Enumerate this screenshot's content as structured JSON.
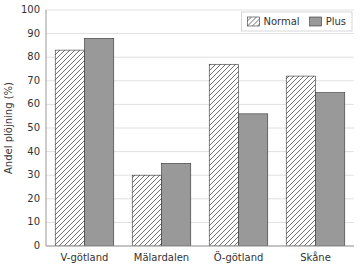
{
  "chart_data": {
    "type": "bar",
    "categories": [
      "V-götland",
      "Mälardalen",
      "Ö-götland",
      "Skåne"
    ],
    "series": [
      {
        "name": "Normal",
        "color": "#ffffff",
        "values": [
          83,
          30,
          77,
          72
        ]
      },
      {
        "name": "Plus",
        "color": "#999999",
        "values": [
          88,
          35,
          56,
          65
        ]
      }
    ],
    "ylabel": "Andel plöjning (%)",
    "ylim": [
      0,
      100
    ],
    "yticks": [
      0,
      10,
      20,
      30,
      40,
      50,
      60,
      70,
      80,
      90,
      100
    ],
    "grid": true,
    "legend": "upper right"
  }
}
